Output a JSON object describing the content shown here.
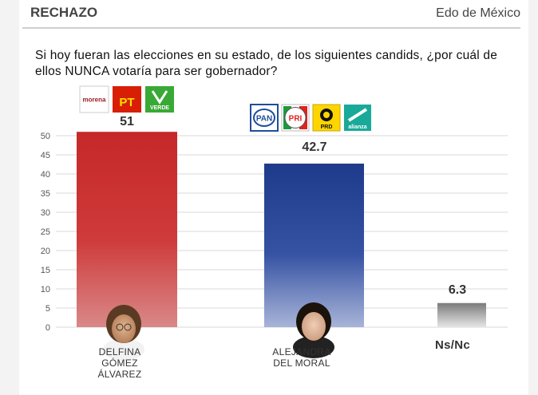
{
  "header": {
    "left_title": "RECHAZO",
    "right_title": "Edo de México"
  },
  "question": "Si hoy fueran las elecciones en su estado, de los siguientes candids, ¿por cuál de ellos NUNCA votaría para ser gobernador?",
  "chart_data": {
    "type": "bar",
    "categories": [
      "DELFINA GÓMEZ ÁLVAREZ",
      "ALEJANDRA DEL MORAL",
      "Ns/Nc"
    ],
    "category_lines": [
      [
        "DELFINA",
        "GÓMEZ",
        "ÁLVAREZ"
      ],
      [
        "ALEJANDRA",
        "DEL MORAL"
      ],
      [
        "Ns/Nc"
      ]
    ],
    "values": [
      51,
      42.7,
      6.3
    ],
    "value_labels": [
      "51",
      "42.7",
      "6.3"
    ],
    "ylim": [
      0,
      50
    ],
    "yticks": [
      0,
      5,
      10,
      15,
      20,
      25,
      30,
      35,
      40,
      45,
      50
    ],
    "grid": true,
    "colors": [
      "#c62828",
      "#1e3a8a",
      "#9e9e9e"
    ],
    "party_logos": [
      [
        "morena",
        "PT",
        "VERDE"
      ],
      [
        "PAN",
        "PRI",
        "PRD",
        "alianza"
      ]
    ],
    "logo_colors": {
      "morena": "#9b1b24",
      "PT": "#d81e05",
      "VERDE": "#39a935",
      "PAN": "#1f4e9a",
      "PRI": "#e2231a",
      "PRD": "#ffd500",
      "alianza": "#18a999"
    }
  }
}
